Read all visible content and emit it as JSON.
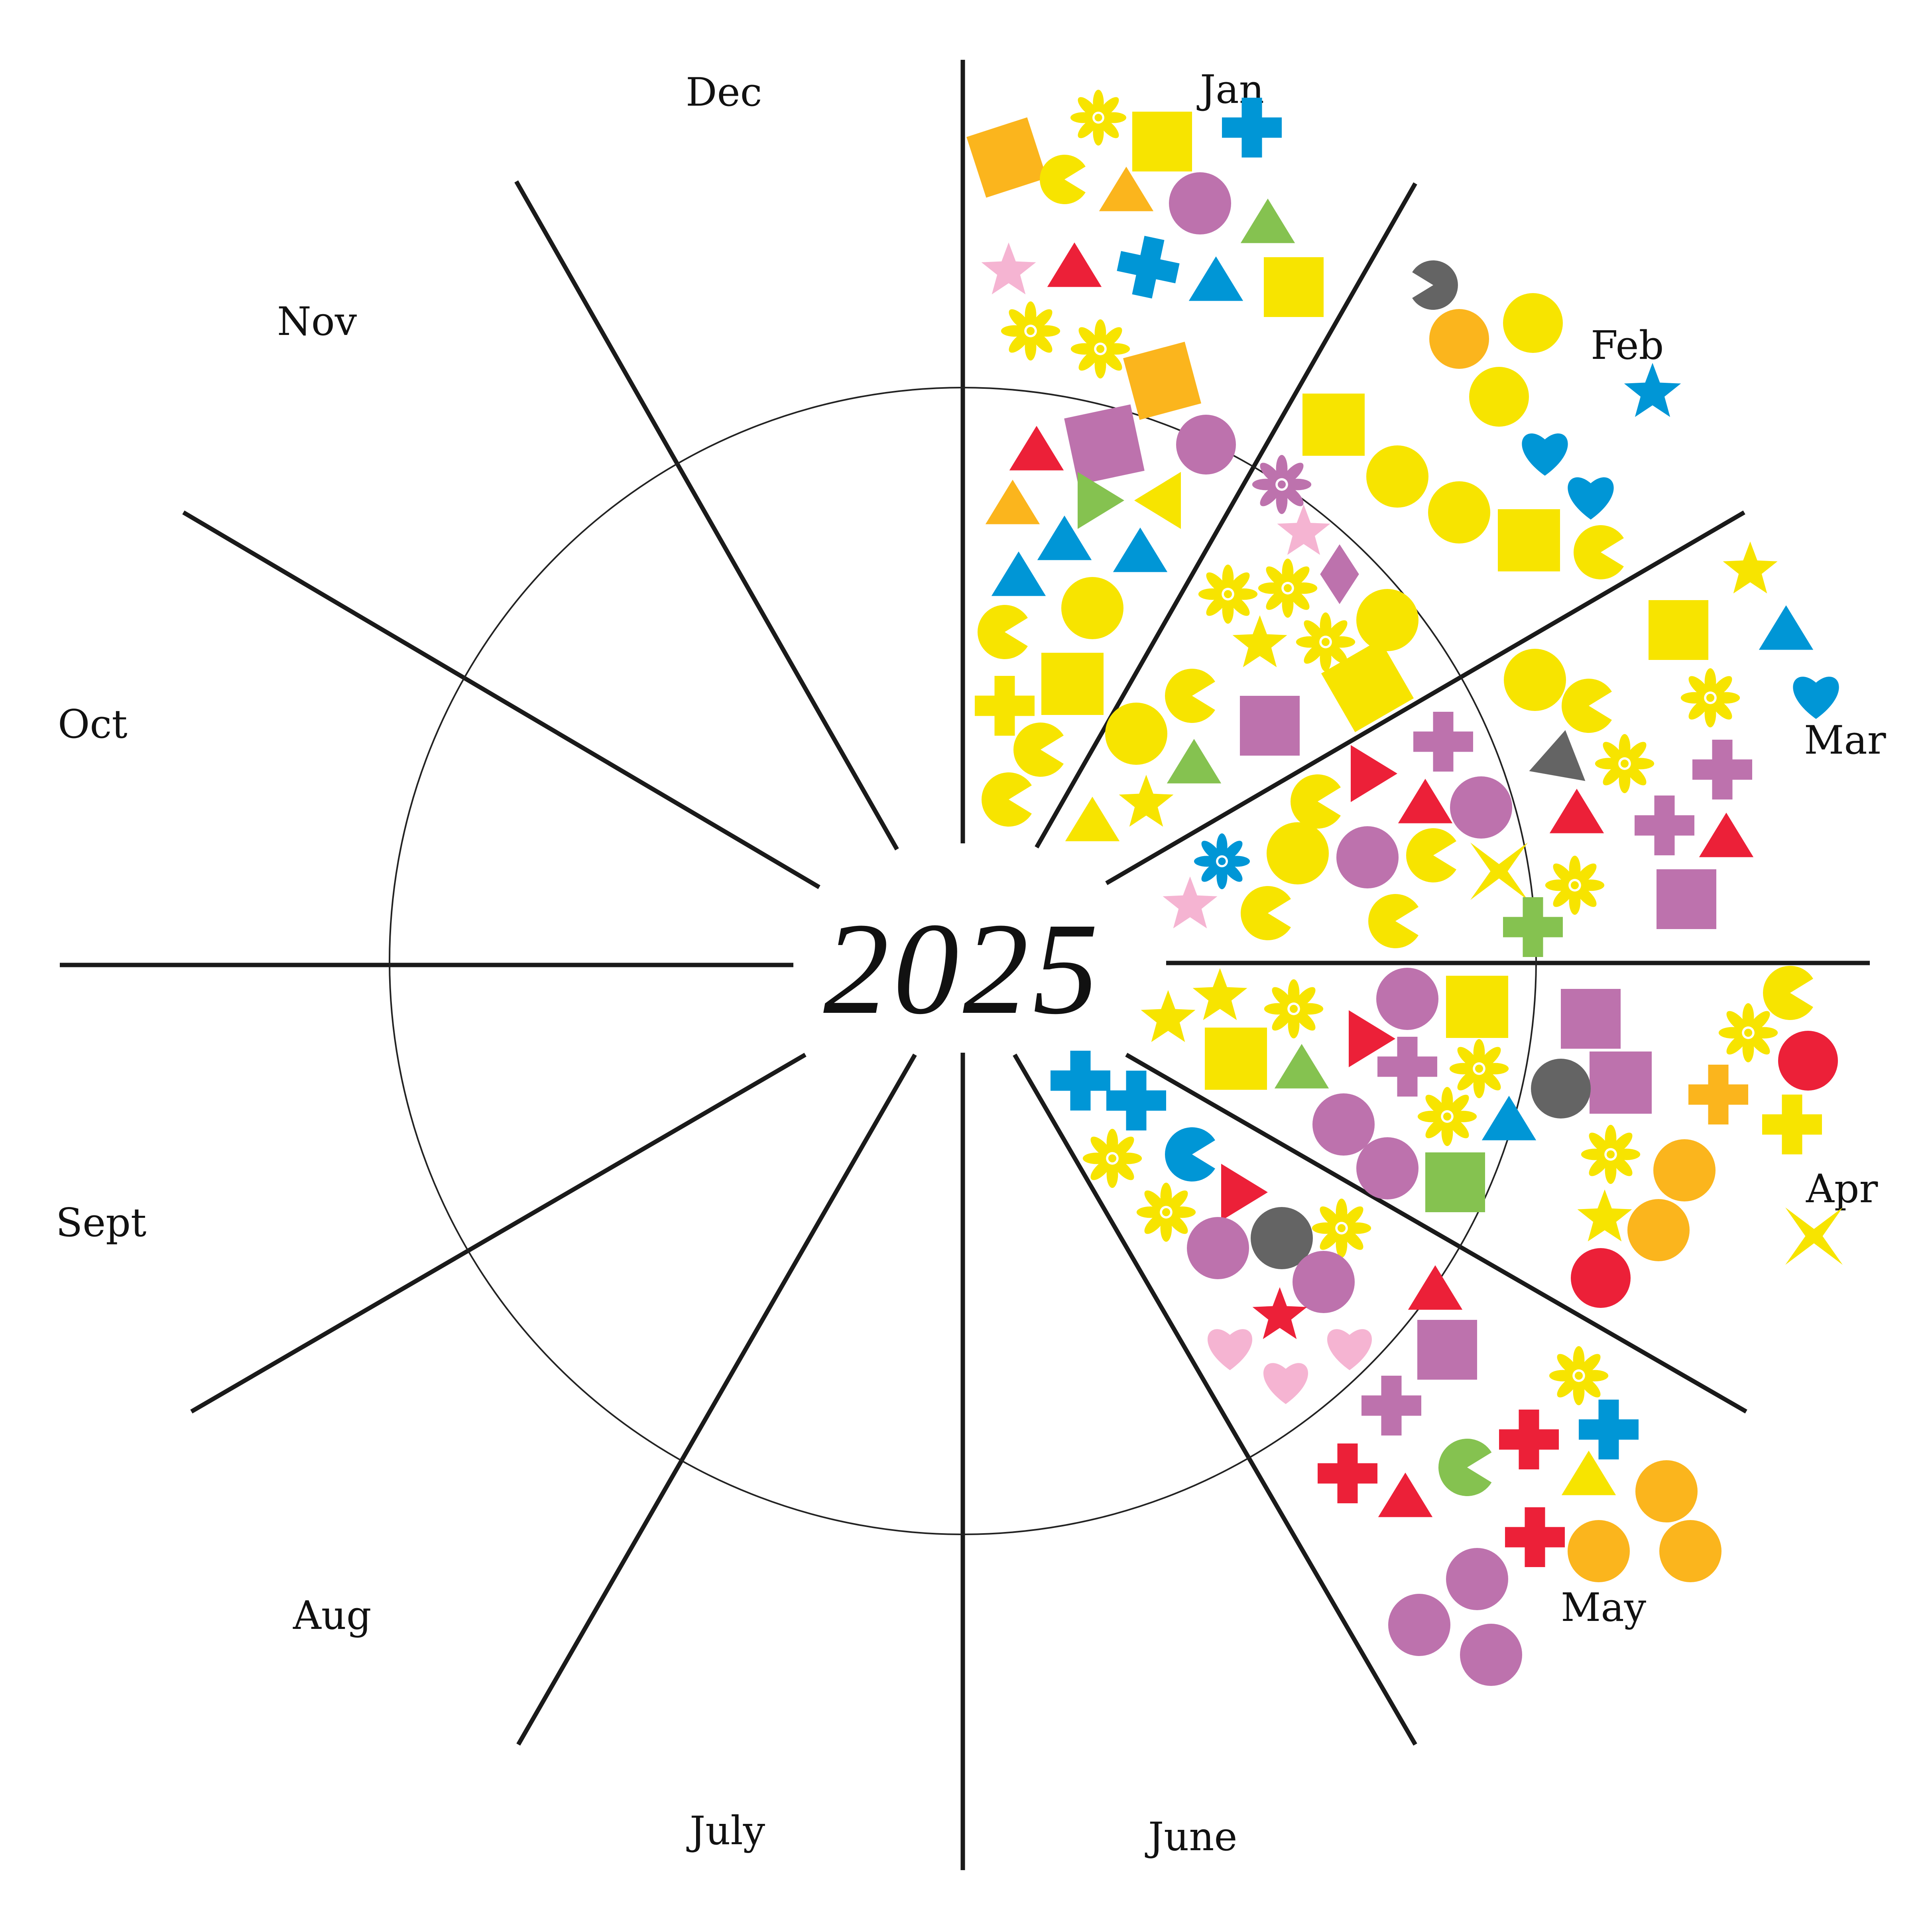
{
  "year": "2025",
  "months": [
    {
      "key": "jan",
      "label": "Jan"
    },
    {
      "key": "feb",
      "label": "Feb"
    },
    {
      "key": "mar",
      "label": "Mar"
    },
    {
      "key": "apr",
      "label": "Apr"
    },
    {
      "key": "may",
      "label": "May"
    },
    {
      "key": "jun",
      "label": "June"
    },
    {
      "key": "jul",
      "label": "July"
    },
    {
      "key": "aug",
      "label": "Aug"
    },
    {
      "key": "sep",
      "label": "Sept"
    },
    {
      "key": "oct",
      "label": "Oct"
    },
    {
      "key": "nov",
      "label": "Nov"
    },
    {
      "key": "dec",
      "label": "Dec"
    }
  ],
  "colors": {
    "yellow": "#f7e400",
    "orange": "#fbb51d",
    "purple": "#bd72ad",
    "blue": "#0096d6",
    "red": "#ec2038",
    "green": "#85c250",
    "pink": "#f5b4d2",
    "gray": "#646464",
    "line": "#1a1a1a"
  },
  "shape_types": [
    "circle",
    "square",
    "triangle",
    "cross",
    "star",
    "flower",
    "pacman",
    "heart",
    "diamond",
    "bowtie"
  ]
}
